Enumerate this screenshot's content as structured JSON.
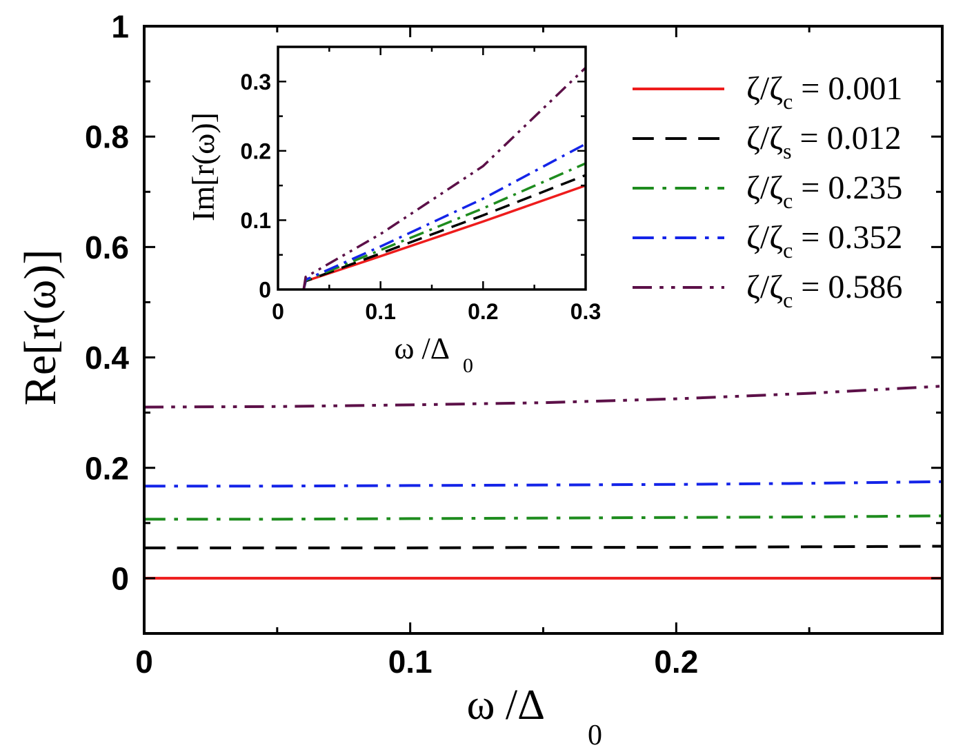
{
  "chart_data": [
    {
      "id": "main",
      "type": "line",
      "xlabel": "ω /Δ",
      "xlabel_sub": "0",
      "ylabel": "Re[r(ω)]",
      "xlim": [
        0,
        0.3
      ],
      "ylim": [
        -0.1,
        1.0
      ],
      "xticks": [
        0,
        0.1,
        0.2
      ],
      "xtick_labels": [
        "0",
        "0.1",
        "0.2"
      ],
      "yticks": [
        0,
        0.2,
        0.4,
        0.6,
        0.8,
        1.0
      ],
      "ytick_labels": [
        "0",
        "0.2",
        "0.4",
        "0.6",
        "0.8",
        "1"
      ],
      "series": [
        {
          "name": "ζ/ζc = 0.001",
          "color": "#ee1c1c",
          "dash": "solid",
          "x": [
            0,
            0.05,
            0.1,
            0.15,
            0.2,
            0.25,
            0.3
          ],
          "values": [
            0.0,
            0.0,
            0.0,
            0.0,
            0.0,
            0.0,
            0.0
          ]
        },
        {
          "name": "ζ/ζs = 0.012",
          "color": "#000000",
          "dash": "dash",
          "x": [
            0,
            0.05,
            0.1,
            0.15,
            0.2,
            0.25,
            0.3
          ],
          "values": [
            0.055,
            0.055,
            0.055,
            0.056,
            0.056,
            0.057,
            0.058
          ]
        },
        {
          "name": "ζ/ζc = 0.235",
          "color": "#1e8c1e",
          "dash": "dashdot",
          "x": [
            0,
            0.05,
            0.1,
            0.15,
            0.2,
            0.25,
            0.3
          ],
          "values": [
            0.107,
            0.107,
            0.108,
            0.109,
            0.11,
            0.111,
            0.113
          ]
        },
        {
          "name": "ζ/ζc = 0.352",
          "color": "#1424e8",
          "dash": "dashdot",
          "x": [
            0,
            0.05,
            0.1,
            0.15,
            0.2,
            0.25,
            0.3
          ],
          "values": [
            0.167,
            0.167,
            0.168,
            0.169,
            0.17,
            0.172,
            0.175
          ]
        },
        {
          "name": "ζ/ζc = 0.586",
          "color": "#5c1048",
          "dash": "dashdotdot",
          "x": [
            0,
            0.05,
            0.1,
            0.15,
            0.2,
            0.25,
            0.3
          ],
          "values": [
            0.31,
            0.311,
            0.314,
            0.318,
            0.325,
            0.335,
            0.348
          ]
        }
      ]
    },
    {
      "id": "inset",
      "type": "line",
      "xlabel": "ω /Δ",
      "xlabel_sub": "0",
      "ylabel": "Im[r(ω)]",
      "xlim": [
        0,
        0.3
      ],
      "ylim": [
        0,
        0.35
      ],
      "xticks": [
        0,
        0.1,
        0.2,
        0.3
      ],
      "xtick_labels": [
        "0",
        "0.1",
        "0.2",
        "0.3"
      ],
      "yticks": [
        0,
        0.1,
        0.2,
        0.3
      ],
      "ytick_labels": [
        "0",
        "0.1",
        "0.2",
        "0.3"
      ],
      "series": [
        {
          "name": "ζ/ζc = 0.001",
          "color": "#ee1c1c",
          "dash": "solid",
          "x": [
            0.025,
            0.027,
            0.1,
            0.2,
            0.3
          ],
          "values": [
            0.0,
            0.012,
            0.048,
            0.098,
            0.15
          ]
        },
        {
          "name": "ζ/ζs = 0.012",
          "color": "#000000",
          "dash": "dash",
          "x": [
            0.025,
            0.027,
            0.1,
            0.2,
            0.3
          ],
          "values": [
            0.0,
            0.012,
            0.052,
            0.107,
            0.165
          ]
        },
        {
          "name": "ζ/ζc = 0.235",
          "color": "#1e8c1e",
          "dash": "dashdot",
          "x": [
            0.025,
            0.027,
            0.1,
            0.2,
            0.3
          ],
          "values": [
            0.0,
            0.013,
            0.057,
            0.117,
            0.182
          ]
        },
        {
          "name": "ζ/ζc = 0.352",
          "color": "#1424e8",
          "dash": "dashdot",
          "x": [
            0.025,
            0.027,
            0.1,
            0.2,
            0.3
          ],
          "values": [
            0.0,
            0.014,
            0.062,
            0.131,
            0.21
          ]
        },
        {
          "name": "ζ/ζc = 0.586",
          "color": "#5c1048",
          "dash": "dashdotdot",
          "x": [
            0.025,
            0.027,
            0.1,
            0.2,
            0.3
          ],
          "values": [
            0.0,
            0.018,
            0.08,
            0.178,
            0.32
          ]
        }
      ]
    }
  ],
  "legend": {
    "placement": "top-right",
    "entries": [
      {
        "base": "ζ/ζ",
        "sub": "c",
        "value": " = 0.001"
      },
      {
        "base": "ζ/ζ",
        "sub": "s",
        "value": " = 0.012"
      },
      {
        "base": "ζ/ζ",
        "sub": "c",
        "value": " = 0.235"
      },
      {
        "base": "ζ/ζ",
        "sub": "c",
        "value": " = 0.352"
      },
      {
        "base": "ζ/ζ",
        "sub": "c",
        "value": " = 0.586"
      }
    ]
  }
}
